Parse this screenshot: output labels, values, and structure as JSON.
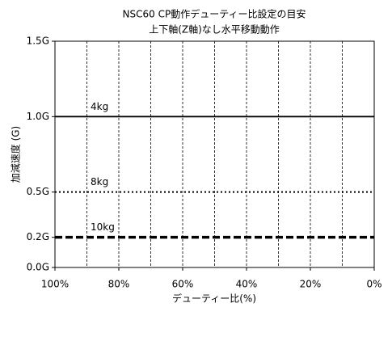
{
  "chart_data": {
    "type": "line",
    "title": "NSC60 CP動作デューティー比設定の目安",
    "subtitle": "上下軸(Z軸)なし水平移動動作",
    "x_label": "デューティー比(%)",
    "y_label": "加減速度 (G)",
    "xlim": [
      100,
      0
    ],
    "ylim": [
      0,
      1.5
    ],
    "xticks": [
      {
        "value": 100,
        "label": "100%"
      },
      {
        "value": 80,
        "label": "80%"
      },
      {
        "value": 60,
        "label": "60%"
      },
      {
        "value": 40,
        "label": "40%"
      },
      {
        "value": 20,
        "label": "20%"
      },
      {
        "value": 0,
        "label": "0%"
      }
    ],
    "yticks": [
      {
        "value": 0,
        "label": "0.0G"
      },
      {
        "value": 0.2,
        "label": "0.2G"
      },
      {
        "value": 0.5,
        "label": "0.5G"
      },
      {
        "value": 1.0,
        "label": "1.0G"
      },
      {
        "value": 1.5,
        "label": "1.5G"
      }
    ],
    "xgrid": [
      90,
      80,
      70,
      60,
      50,
      40,
      30,
      20,
      10
    ],
    "grid": true,
    "series": [
      {
        "name": "4kg",
        "color": "#000000",
        "style": "solid",
        "x": [
          100,
          0
        ],
        "values": [
          1.0,
          1.0
        ]
      },
      {
        "name": "8kg",
        "color": "#000000",
        "style": "dotted",
        "x": [
          100,
          0
        ],
        "values": [
          0.5,
          0.5
        ]
      },
      {
        "name": "10kg",
        "color": "#000000",
        "style": "dashed",
        "x": [
          100,
          0
        ],
        "values": [
          0.2,
          0.2
        ]
      }
    ]
  }
}
